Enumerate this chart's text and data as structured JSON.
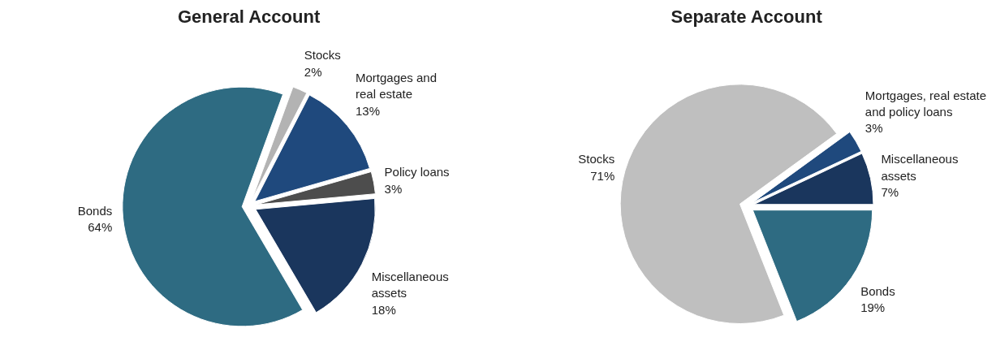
{
  "chart_data": [
    {
      "type": "pie",
      "title": "General Account",
      "categories": [
        "Stocks",
        "Mortgages and real estate",
        "Policy loans",
        "Miscellaneous assets",
        "Bonds"
      ],
      "values": [
        2,
        13,
        3,
        18,
        64
      ],
      "value_labels": [
        "2%",
        "13%",
        "3%",
        "18%",
        "64%"
      ],
      "colors": [
        "#b3b3b3",
        "#1f497d",
        "#4d4d4d",
        "#1a365d",
        "#2e6b82"
      ],
      "legend": false
    },
    {
      "type": "pie",
      "title": "Separate Account",
      "categories": [
        "Mortgages, real estate and policy loans",
        "Miscellaneous assets",
        "Bonds",
        "Stocks"
      ],
      "values": [
        3,
        7,
        19,
        71
      ],
      "value_labels": [
        "3%",
        "7%",
        "19%",
        "71%"
      ],
      "colors": [
        "#1f497d",
        "#1a365d",
        "#2e6b82",
        "#bfbfbf"
      ],
      "legend": false
    }
  ]
}
